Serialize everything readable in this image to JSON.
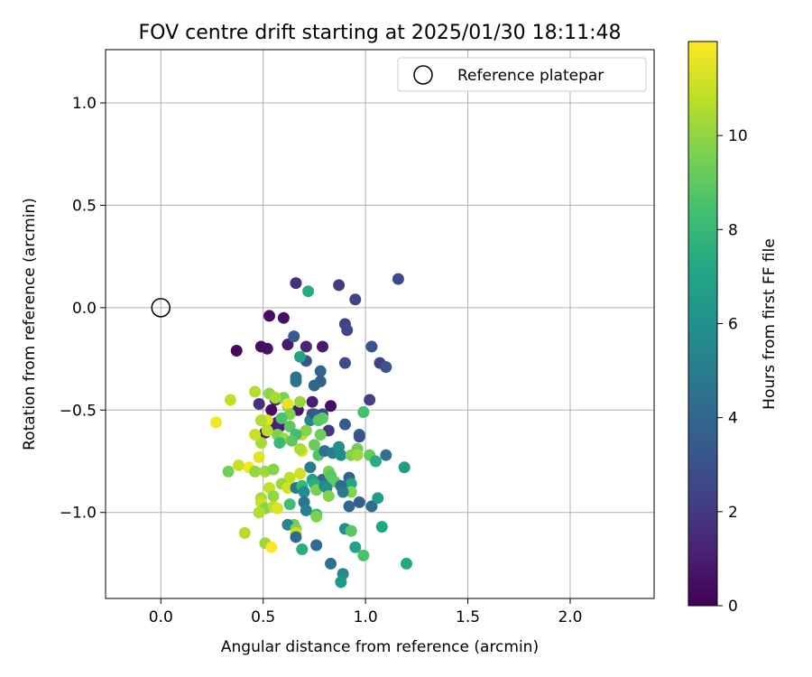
{
  "chart_data": {
    "type": "scatter",
    "title": "FOV centre drift starting at 2025/01/30 18:11:48",
    "xlabel": "Angular distance from reference (arcmin)",
    "ylabel": "Rotation from reference (arcmin)",
    "xlim": [
      -0.27,
      2.41
    ],
    "ylim": [
      -1.42,
      1.26
    ],
    "x_ticks": [
      "0.0",
      "0.5",
      "1.0",
      "1.5",
      "2.0"
    ],
    "x_tick_values": [
      0.0,
      0.5,
      1.0,
      1.5,
      2.0
    ],
    "y_ticks": [
      "1.0",
      "0.5",
      "0.0",
      "−0.5",
      "−1.0"
    ],
    "y_tick_values": [
      1.0,
      0.5,
      0.0,
      -0.5,
      -1.0
    ],
    "grid": true,
    "legend": {
      "placement": "top-right",
      "label": "Reference platepar"
    },
    "reference_point": {
      "x": 0.0,
      "y": 0.0
    },
    "colorbar": {
      "label": "Hours from first FF file",
      "range": [
        0,
        12
      ],
      "tick_labels": [
        "0",
        "2",
        "4",
        "6",
        "8",
        "10"
      ],
      "tick_values": [
        0,
        2,
        4,
        6,
        8,
        10
      ],
      "colormap": "viridis"
    },
    "points": [
      {
        "x": 0.53,
        "y": -0.04,
        "h": 0.4
      },
      {
        "x": 0.6,
        "y": -0.05,
        "h": 0.5
      },
      {
        "x": 0.37,
        "y": -0.21,
        "h": 0.3
      },
      {
        "x": 0.49,
        "y": -0.19,
        "h": 0.4
      },
      {
        "x": 0.52,
        "y": -0.2,
        "h": 0.6
      },
      {
        "x": 0.62,
        "y": -0.18,
        "h": 0.8
      },
      {
        "x": 0.79,
        "y": -0.19,
        "h": 0.9
      },
      {
        "x": 0.71,
        "y": -0.19,
        "h": 1.3
      },
      {
        "x": 0.66,
        "y": 0.12,
        "h": 1.6
      },
      {
        "x": 0.87,
        "y": 0.11,
        "h": 2.1
      },
      {
        "x": 0.95,
        "y": 0.04,
        "h": 2.4
      },
      {
        "x": 1.16,
        "y": 0.14,
        "h": 2.6
      },
      {
        "x": 0.9,
        "y": -0.08,
        "h": 2.3
      },
      {
        "x": 0.91,
        "y": -0.11,
        "h": 2.5
      },
      {
        "x": 1.03,
        "y": -0.19,
        "h": 3.1
      },
      {
        "x": 0.9,
        "y": -0.27,
        "h": 2.7
      },
      {
        "x": 1.07,
        "y": -0.27,
        "h": 2.2
      },
      {
        "x": 1.1,
        "y": -0.29,
        "h": 3.0
      },
      {
        "x": 0.65,
        "y": -0.14,
        "h": 3.4
      },
      {
        "x": 0.71,
        "y": -0.26,
        "h": 3.2
      },
      {
        "x": 0.78,
        "y": -0.31,
        "h": 3.8
      },
      {
        "x": 0.78,
        "y": -0.36,
        "h": 3.6
      },
      {
        "x": 0.75,
        "y": -0.38,
        "h": 4.0
      },
      {
        "x": 0.66,
        "y": -0.34,
        "h": 4.4
      },
      {
        "x": 0.66,
        "y": -0.36,
        "h": 4.6
      },
      {
        "x": 1.02,
        "y": -0.45,
        "h": 2.2
      },
      {
        "x": 0.74,
        "y": -0.46,
        "h": 1.0
      },
      {
        "x": 0.83,
        "y": -0.48,
        "h": 0.5
      },
      {
        "x": 0.48,
        "y": -0.47,
        "h": 1.7
      },
      {
        "x": 0.56,
        "y": -0.45,
        "h": 1.5
      },
      {
        "x": 0.54,
        "y": -0.5,
        "h": 0.4
      },
      {
        "x": 0.67,
        "y": -0.5,
        "h": 0.8
      },
      {
        "x": 0.58,
        "y": -0.58,
        "h": 0.9
      },
      {
        "x": 0.51,
        "y": -0.61,
        "h": 0.5
      },
      {
        "x": 0.53,
        "y": -0.58,
        "h": 0.7
      },
      {
        "x": 0.57,
        "y": -0.56,
        "h": 1.2
      },
      {
        "x": 0.82,
        "y": -0.6,
        "h": 1.8
      },
      {
        "x": 0.74,
        "y": -0.52,
        "h": 2.5
      },
      {
        "x": 0.79,
        "y": -0.52,
        "h": 2.9
      },
      {
        "x": 0.9,
        "y": -0.57,
        "h": 3.4
      },
      {
        "x": 0.97,
        "y": -0.62,
        "h": 3.9
      },
      {
        "x": 0.97,
        "y": -0.63,
        "h": 3.0
      },
      {
        "x": 0.74,
        "y": -0.54,
        "h": 4.7
      },
      {
        "x": 0.73,
        "y": -0.55,
        "h": 5.5
      },
      {
        "x": 0.75,
        "y": -0.52,
        "h": 3.3
      },
      {
        "x": 0.68,
        "y": -0.24,
        "h": 7.0
      },
      {
        "x": 0.72,
        "y": 0.08,
        "h": 7.4
      },
      {
        "x": 0.99,
        "y": -0.51,
        "h": 8.4
      },
      {
        "x": 0.77,
        "y": -0.55,
        "h": 8.8
      },
      {
        "x": 0.79,
        "y": -0.54,
        "h": 9.0
      },
      {
        "x": 0.62,
        "y": -0.48,
        "h": 9.2
      },
      {
        "x": 0.6,
        "y": -0.44,
        "h": 9.5
      },
      {
        "x": 0.53,
        "y": -0.42,
        "h": 9.9
      },
      {
        "x": 0.56,
        "y": -0.44,
        "h": 10.4
      },
      {
        "x": 0.46,
        "y": -0.41,
        "h": 10.6
      },
      {
        "x": 0.34,
        "y": -0.45,
        "h": 10.8
      },
      {
        "x": 0.27,
        "y": -0.56,
        "h": 11.8
      },
      {
        "x": 0.62,
        "y": -0.47,
        "h": 11.6
      },
      {
        "x": 0.52,
        "y": -0.55,
        "h": 11.5
      },
      {
        "x": 0.49,
        "y": -0.55,
        "h": 10.6
      },
      {
        "x": 0.68,
        "y": -0.46,
        "h": 10.1
      },
      {
        "x": 0.63,
        "y": -0.52,
        "h": 9.7
      },
      {
        "x": 0.59,
        "y": -0.54,
        "h": 8.6
      },
      {
        "x": 0.69,
        "y": -0.62,
        "h": 10.8
      },
      {
        "x": 0.71,
        "y": -0.6,
        "h": 9.8
      },
      {
        "x": 0.78,
        "y": -0.62,
        "h": 9.3
      },
      {
        "x": 0.63,
        "y": -0.58,
        "h": 8.9
      },
      {
        "x": 0.57,
        "y": -0.62,
        "h": 9.6
      },
      {
        "x": 0.6,
        "y": -0.64,
        "h": 10.2
      },
      {
        "x": 0.66,
        "y": -0.62,
        "h": 8.3
      },
      {
        "x": 0.49,
        "y": -0.66,
        "h": 10.4
      },
      {
        "x": 0.46,
        "y": -0.62,
        "h": 11.0
      },
      {
        "x": 0.52,
        "y": -0.6,
        "h": 10.7
      },
      {
        "x": 0.58,
        "y": -0.66,
        "h": 8.0
      },
      {
        "x": 0.64,
        "y": -0.65,
        "h": 9.0
      },
      {
        "x": 0.69,
        "y": -0.7,
        "h": 11.3
      },
      {
        "x": 0.68,
        "y": -0.69,
        "h": 10.5
      },
      {
        "x": 0.75,
        "y": -0.67,
        "h": 9.2
      },
      {
        "x": 0.77,
        "y": -0.72,
        "h": 8.7
      },
      {
        "x": 0.8,
        "y": -0.7,
        "h": 4.4
      },
      {
        "x": 0.84,
        "y": -0.71,
        "h": 5.0
      },
      {
        "x": 0.87,
        "y": -0.68,
        "h": 6.0
      },
      {
        "x": 0.88,
        "y": -0.72,
        "h": 5.7
      },
      {
        "x": 0.93,
        "y": -0.72,
        "h": 9.7
      },
      {
        "x": 0.96,
        "y": -0.69,
        "h": 9.3
      },
      {
        "x": 0.96,
        "y": -0.72,
        "h": 10.2
      },
      {
        "x": 1.02,
        "y": -0.72,
        "h": 9.1
      },
      {
        "x": 1.05,
        "y": -0.75,
        "h": 7.4
      },
      {
        "x": 1.1,
        "y": -0.72,
        "h": 4.4
      },
      {
        "x": 1.19,
        "y": -0.78,
        "h": 6.6
      },
      {
        "x": 0.43,
        "y": -0.78,
        "h": 11.8
      },
      {
        "x": 0.38,
        "y": -0.77,
        "h": 11.0
      },
      {
        "x": 0.33,
        "y": -0.8,
        "h": 9.4
      },
      {
        "x": 0.46,
        "y": -0.8,
        "h": 10.1
      },
      {
        "x": 0.51,
        "y": -0.8,
        "h": 10.3
      },
      {
        "x": 0.55,
        "y": -0.79,
        "h": 9.8
      },
      {
        "x": 0.48,
        "y": -0.73,
        "h": 11.5
      },
      {
        "x": 0.63,
        "y": -0.83,
        "h": 10.8
      },
      {
        "x": 0.68,
        "y": -0.81,
        "h": 11.1
      },
      {
        "x": 0.73,
        "y": -0.78,
        "h": 5.0
      },
      {
        "x": 0.74,
        "y": -0.84,
        "h": 6.8
      },
      {
        "x": 0.79,
        "y": -0.84,
        "h": 4.2
      },
      {
        "x": 0.82,
        "y": -0.8,
        "h": 9.5
      },
      {
        "x": 0.83,
        "y": -0.82,
        "h": 8.9
      },
      {
        "x": 0.85,
        "y": -0.85,
        "h": 9.1
      },
      {
        "x": 0.92,
        "y": -0.83,
        "h": 3.8
      },
      {
        "x": 0.93,
        "y": -0.86,
        "h": 7.0
      },
      {
        "x": 0.93,
        "y": -0.9,
        "h": 9.7
      },
      {
        "x": 0.53,
        "y": -0.88,
        "h": 10.9
      },
      {
        "x": 0.59,
        "y": -0.86,
        "h": 10.2
      },
      {
        "x": 0.62,
        "y": -0.88,
        "h": 11.2
      },
      {
        "x": 0.66,
        "y": -0.88,
        "h": 4.9
      },
      {
        "x": 0.69,
        "y": -0.87,
        "h": 8.0
      },
      {
        "x": 0.7,
        "y": -0.9,
        "h": 5.8
      },
      {
        "x": 0.75,
        "y": -0.86,
        "h": 7.5
      },
      {
        "x": 0.76,
        "y": -0.89,
        "h": 9.5
      },
      {
        "x": 0.8,
        "y": -0.87,
        "h": 5.4
      },
      {
        "x": 0.81,
        "y": -0.88,
        "h": 6.1
      },
      {
        "x": 0.82,
        "y": -0.92,
        "h": 9.7
      },
      {
        "x": 0.88,
        "y": -0.87,
        "h": 4.2
      },
      {
        "x": 0.89,
        "y": -0.9,
        "h": 5.0
      },
      {
        "x": 0.55,
        "y": -0.92,
        "h": 10.0
      },
      {
        "x": 0.49,
        "y": -0.93,
        "h": 10.4
      },
      {
        "x": 0.49,
        "y": -0.95,
        "h": 11.0
      },
      {
        "x": 0.51,
        "y": -0.98,
        "h": 9.8
      },
      {
        "x": 0.48,
        "y": -1.0,
        "h": 10.6
      },
      {
        "x": 0.55,
        "y": -0.97,
        "h": 10.7
      },
      {
        "x": 0.57,
        "y": -0.98,
        "h": 11.4
      },
      {
        "x": 0.63,
        "y": -0.96,
        "h": 8.3
      },
      {
        "x": 0.7,
        "y": -0.95,
        "h": 4.7
      },
      {
        "x": 0.71,
        "y": -0.99,
        "h": 5.2
      },
      {
        "x": 0.76,
        "y": -1.01,
        "h": 7.8
      },
      {
        "x": 0.76,
        "y": -1.02,
        "h": 9.6
      },
      {
        "x": 0.92,
        "y": -0.97,
        "h": 4.0
      },
      {
        "x": 0.97,
        "y": -0.95,
        "h": 3.6
      },
      {
        "x": 1.03,
        "y": -0.97,
        "h": 4.3
      },
      {
        "x": 1.06,
        "y": -0.93,
        "h": 6.6
      },
      {
        "x": 0.65,
        "y": -1.06,
        "h": 9.3
      },
      {
        "x": 0.62,
        "y": -1.06,
        "h": 5.4
      },
      {
        "x": 0.66,
        "y": -1.08,
        "h": 9.6
      },
      {
        "x": 0.66,
        "y": -1.1,
        "h": 11.0
      },
      {
        "x": 0.66,
        "y": -1.12,
        "h": 4.1
      },
      {
        "x": 0.41,
        "y": -1.1,
        "h": 10.6
      },
      {
        "x": 0.51,
        "y": -1.15,
        "h": 10.2
      },
      {
        "x": 0.54,
        "y": -1.17,
        "h": 12.0
      },
      {
        "x": 0.69,
        "y": -1.18,
        "h": 7.5
      },
      {
        "x": 0.76,
        "y": -1.16,
        "h": 4.2
      },
      {
        "x": 0.9,
        "y": -1.08,
        "h": 5.8
      },
      {
        "x": 0.93,
        "y": -1.09,
        "h": 8.9
      },
      {
        "x": 0.95,
        "y": -1.17,
        "h": 7.0
      },
      {
        "x": 0.99,
        "y": -1.21,
        "h": 8.5
      },
      {
        "x": 1.08,
        "y": -1.07,
        "h": 7.0
      },
      {
        "x": 0.83,
        "y": -1.25,
        "h": 4.4
      },
      {
        "x": 0.89,
        "y": -1.3,
        "h": 5.7
      },
      {
        "x": 0.88,
        "y": -1.34,
        "h": 6.4
      },
      {
        "x": 1.2,
        "y": -1.25,
        "h": 7.2
      }
    ]
  }
}
